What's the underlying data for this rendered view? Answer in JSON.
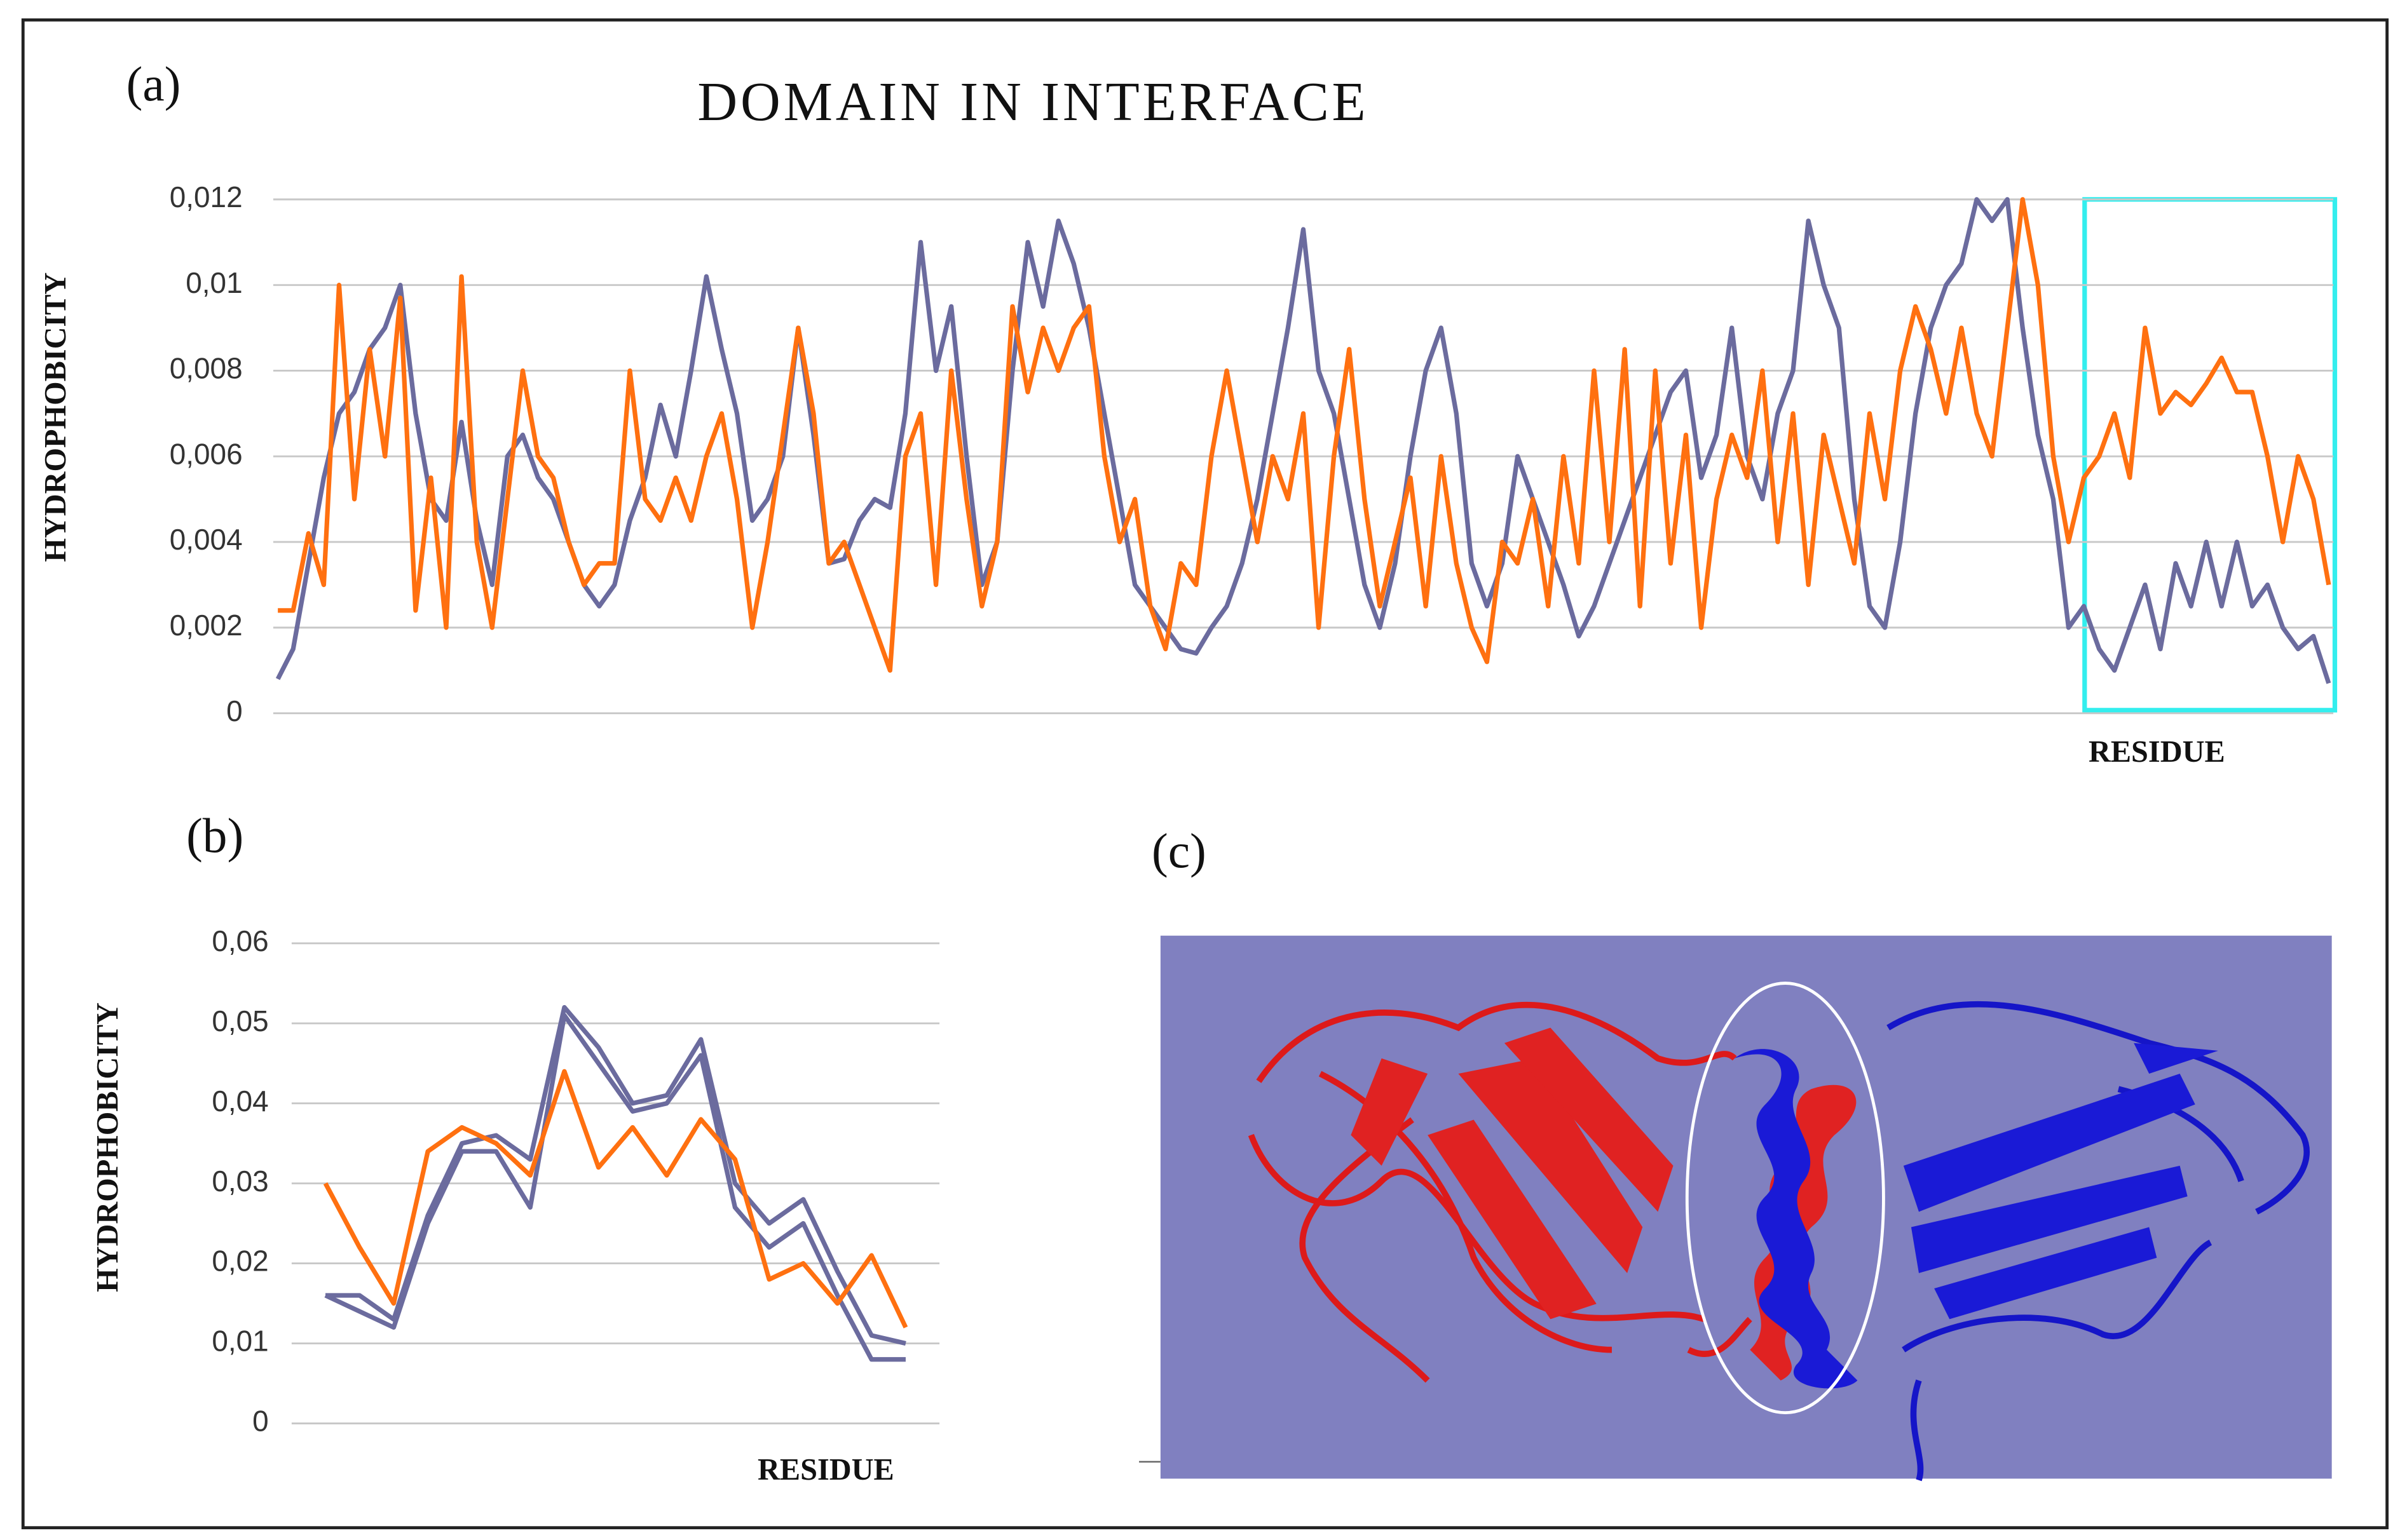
{
  "chart_data": [
    {
      "type": "line",
      "panel_label": "(a)",
      "title": "DOMAIN IN INTERFACE",
      "y_label": "HYDROPHOBICITY",
      "x_label": "RESIDUE",
      "ylim": [
        0,
        0.012
      ],
      "yticks": [
        0,
        {
          "value": 0.002,
          "label": "0,002"
        },
        {
          "value": 0.004,
          "label": "0,004"
        },
        {
          "value": 0.006,
          "label": "0,006"
        },
        {
          "value": 0.008,
          "label": "0,008"
        },
        {
          "value": 0.01,
          "label": "0,01"
        },
        {
          "value": 0.012,
          "label": "0,012"
        }
      ],
      "grid": true,
      "series": [
        {
          "color": "#6b6b9e",
          "values": [
            0.0008,
            0.0015,
            0.0035,
            0.0055,
            0.007,
            0.0075,
            0.0085,
            0.009,
            0.01,
            0.007,
            0.005,
            0.0045,
            0.0068,
            0.0045,
            0.003,
            0.006,
            0.0065,
            0.0055,
            0.005,
            0.004,
            0.003,
            0.0025,
            0.003,
            0.0045,
            0.0055,
            0.0072,
            0.006,
            0.008,
            0.0102,
            0.0085,
            0.007,
            0.0045,
            0.005,
            0.006,
            0.009,
            0.0065,
            0.0035,
            0.0036,
            0.0045,
            0.005,
            0.0048,
            0.007,
            0.011,
            0.008,
            0.0095,
            0.006,
            0.003,
            0.004,
            0.008,
            0.011,
            0.0095,
            0.0115,
            0.0105,
            0.009,
            0.007,
            0.005,
            0.003,
            0.0025,
            0.002,
            0.0015,
            0.0014,
            0.002,
            0.0025,
            0.0035,
            0.005,
            0.007,
            0.009,
            0.0113,
            0.008,
            0.007,
            0.005,
            0.003,
            0.002,
            0.0035,
            0.006,
            0.008,
            0.009,
            0.007,
            0.0035,
            0.0025,
            0.0035,
            0.006,
            0.005,
            0.004,
            0.003,
            0.0018,
            0.0025,
            0.0035,
            0.0045,
            0.0055,
            0.0065,
            0.0075,
            0.008,
            0.0055,
            0.0065,
            0.009,
            0.006,
            0.005,
            0.007,
            0.008,
            0.0115,
            0.01,
            0.009,
            0.005,
            0.0025,
            0.002,
            0.004,
            0.007,
            0.009,
            0.01,
            0.0105,
            0.012,
            0.0115,
            0.012,
            0.009,
            0.0065,
            0.005,
            0.002,
            0.0025,
            0.0015,
            0.001,
            0.002,
            0.003,
            0.0015,
            0.0035,
            0.0025,
            0.004,
            0.0025,
            0.004,
            0.0025,
            0.003,
            0.002,
            0.0015,
            0.0018,
            0.0007
          ]
        },
        {
          "color": "#ff7010",
          "values": [
            0.0024,
            0.0024,
            0.0042,
            0.003,
            0.01,
            0.005,
            0.0085,
            0.006,
            0.0097,
            0.0024,
            0.0055,
            0.002,
            0.0102,
            0.004,
            0.002,
            0.005,
            0.008,
            0.006,
            0.0055,
            0.004,
            0.003,
            0.0035,
            0.0035,
            0.008,
            0.005,
            0.0045,
            0.0055,
            0.0045,
            0.006,
            0.007,
            0.005,
            0.002,
            0.004,
            0.0065,
            0.009,
            0.007,
            0.0035,
            0.004,
            0.003,
            0.002,
            0.001,
            0.006,
            0.007,
            0.003,
            0.008,
            0.005,
            0.0025,
            0.004,
            0.0095,
            0.0075,
            0.009,
            0.008,
            0.009,
            0.0095,
            0.006,
            0.004,
            0.005,
            0.0025,
            0.0015,
            0.0035,
            0.003,
            0.006,
            0.008,
            0.006,
            0.004,
            0.006,
            0.005,
            0.007,
            0.002,
            0.006,
            0.0085,
            0.005,
            0.0025,
            0.004,
            0.0055,
            0.0025,
            0.006,
            0.0035,
            0.002,
            0.0012,
            0.004,
            0.0035,
            0.005,
            0.0025,
            0.006,
            0.0035,
            0.008,
            0.004,
            0.0085,
            0.0025,
            0.008,
            0.0035,
            0.0065,
            0.002,
            0.005,
            0.0065,
            0.0055,
            0.008,
            0.004,
            0.007,
            0.003,
            0.0065,
            0.005,
            0.0035,
            0.007,
            0.005,
            0.008,
            0.0095,
            0.0085,
            0.007,
            0.009,
            0.007,
            0.006,
            0.009,
            0.012,
            0.01,
            0.006,
            0.004,
            0.0055,
            0.006,
            0.007,
            0.0055,
            0.009,
            0.007,
            0.0075,
            0.0072,
            0.0077,
            0.0083,
            0.0075,
            0.0075,
            0.006,
            0.004,
            0.006,
            0.005,
            0.003
          ]
        }
      ]
    },
    {
      "type": "line",
      "panel_label": "(b)",
      "y_label": "HYDROPHOBICITY",
      "x_label": "RESIDUE",
      "ylim": [
        0,
        0.06
      ],
      "yticks": [
        0,
        {
          "value": 0.01,
          "label": "0,01"
        },
        {
          "value": 0.02,
          "label": "0,02"
        },
        {
          "value": 0.03,
          "label": "0,03"
        },
        {
          "value": 0.04,
          "label": "0,04"
        },
        {
          "value": 0.05,
          "label": "0,05"
        },
        {
          "value": 0.06,
          "label": "0,06"
        }
      ],
      "grid": true,
      "series": [
        {
          "color": "#6b6b9e",
          "values": [
            0.016,
            0.016,
            0.013,
            0.026,
            0.035,
            0.036,
            0.033,
            0.052,
            0.047,
            0.04,
            0.041,
            0.048,
            0.03,
            0.025,
            0.028,
            0.019,
            0.011,
            0.01
          ]
        },
        {
          "color": "#6b6b9e",
          "values": [
            0.016,
            0.014,
            0.012,
            0.025,
            0.034,
            0.034,
            0.027,
            0.051,
            0.045,
            0.039,
            0.04,
            0.046,
            0.027,
            0.022,
            0.025,
            0.016,
            0.008,
            0.008
          ]
        },
        {
          "color": "#ff7010",
          "values": [
            0.03,
            0.022,
            0.015,
            0.034,
            0.037,
            0.035,
            0.031,
            0.044,
            0.032,
            0.037,
            0.031,
            0.038,
            0.033,
            0.018,
            0.02,
            0.015,
            0.021,
            0.012
          ]
        }
      ]
    }
  ],
  "image_panel": {
    "label": "(c)"
  }
}
